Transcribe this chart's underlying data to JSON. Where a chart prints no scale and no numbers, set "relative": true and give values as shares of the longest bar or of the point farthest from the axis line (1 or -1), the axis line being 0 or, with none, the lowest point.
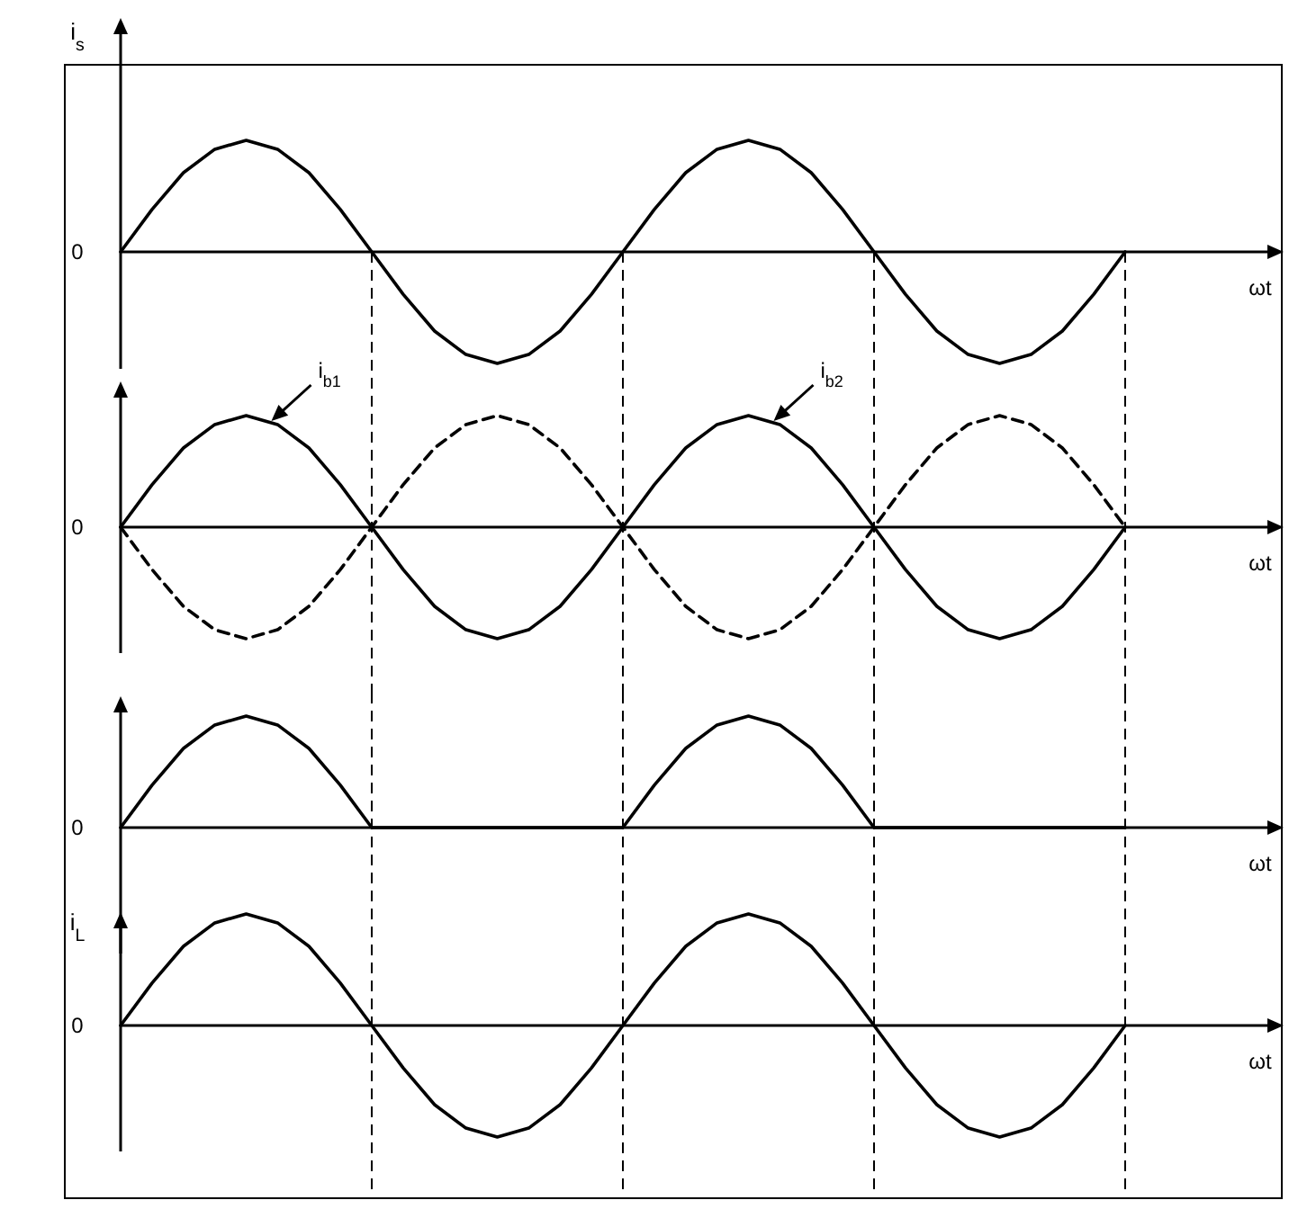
{
  "chart_data": [
    {
      "type": "line",
      "relative": true,
      "grid": "x",
      "ylabel": "i$_{s}$",
      "xlabel": "ωt",
      "annotations": [
        "0"
      ],
      "categories": [
        null,
        null,
        null,
        null,
        null,
        null,
        null,
        null,
        null,
        null,
        null,
        null,
        null,
        null,
        null,
        null,
        null,
        null,
        null,
        null,
        null,
        null,
        null,
        null,
        null,
        null,
        null,
        null,
        null,
        null,
        null,
        null,
        null
      ],
      "series": [
        {
          "color": "#000000",
          "line_style": "solid",
          "values": [
            0,
            0.38,
            0.71,
            0.92,
            1,
            0.92,
            0.71,
            0.38,
            0,
            -0.38,
            -0.71,
            -0.92,
            -1,
            -0.92,
            -0.71,
            -0.38,
            0,
            0.38,
            0.71,
            0.92,
            1,
            0.92,
            0.71,
            0.38,
            0,
            -0.38,
            -0.71,
            -0.92,
            -1,
            -0.92,
            -0.71,
            -0.38,
            0
          ]
        }
      ]
    },
    {
      "type": "line",
      "relative": true,
      "grid": "x",
      "xlabel": "ωt",
      "annotations": [
        "0",
        "i$_{b1}$",
        "i$_{b2}$"
      ],
      "categories": [
        null,
        null,
        null,
        null,
        null,
        null,
        null,
        null,
        null,
        null,
        null,
        null,
        null,
        null,
        null,
        null,
        null,
        null,
        null,
        null,
        null,
        null,
        null,
        null,
        null,
        null,
        null,
        null,
        null,
        null,
        null,
        null,
        null
      ],
      "series": [
        {
          "color": "#000000",
          "line_style": "solid",
          "values": [
            0,
            0.38,
            0.71,
            0.92,
            1,
            0.92,
            0.71,
            0.38,
            0,
            -0.38,
            -0.71,
            -0.92,
            -1,
            -0.92,
            -0.71,
            -0.38,
            0,
            0.38,
            0.71,
            0.92,
            1,
            0.92,
            0.71,
            0.38,
            0,
            -0.38,
            -0.71,
            -0.92,
            -1,
            -0.92,
            -0.71,
            -0.38,
            0
          ]
        },
        {
          "color": "#000000",
          "line_style": "dashed",
          "values": [
            0,
            -0.38,
            -0.71,
            -0.92,
            -1,
            -0.92,
            -0.71,
            -0.38,
            0,
            0.38,
            0.71,
            0.92,
            1,
            0.92,
            0.71,
            0.38,
            0,
            -0.38,
            -0.71,
            -0.92,
            -1,
            -0.92,
            -0.71,
            -0.38,
            0,
            0.38,
            0.71,
            0.92,
            1,
            0.92,
            0.71,
            0.38,
            0
          ]
        }
      ]
    },
    {
      "type": "line",
      "relative": true,
      "grid": "x",
      "xlabel": "ωt",
      "annotations": [
        "0"
      ],
      "categories": [
        null,
        null,
        null,
        null,
        null,
        null,
        null,
        null,
        null,
        null,
        null,
        null,
        null,
        null,
        null,
        null,
        null,
        null,
        null,
        null,
        null,
        null,
        null,
        null,
        null,
        null,
        null,
        null,
        null,
        null,
        null,
        null,
        null
      ],
      "series": [
        {
          "color": "#000000",
          "line_style": "solid",
          "values": [
            0,
            0.38,
            0.71,
            0.92,
            1,
            0.92,
            0.71,
            0.38,
            0,
            0,
            0,
            0,
            0,
            0,
            0,
            0,
            0,
            0.38,
            0.71,
            0.92,
            1,
            0.92,
            0.71,
            0.38,
            0,
            0,
            0,
            0,
            0,
            0,
            0,
            0,
            0
          ]
        }
      ]
    },
    {
      "type": "line",
      "relative": true,
      "grid": "x",
      "ylabel": "i$_{L}$",
      "xlabel": "ωt",
      "annotations": [
        "0"
      ],
      "categories": [
        null,
        null,
        null,
        null,
        null,
        null,
        null,
        null,
        null,
        null,
        null,
        null,
        null,
        null,
        null,
        null,
        null,
        null,
        null,
        null,
        null,
        null,
        null,
        null,
        null,
        null,
        null,
        null,
        null,
        null,
        null,
        null,
        null
      ],
      "series": [
        {
          "color": "#000000",
          "line_style": "solid",
          "values": [
            0,
            0.38,
            0.71,
            0.92,
            1,
            0.92,
            0.71,
            0.38,
            0,
            -0.38,
            -0.71,
            -0.92,
            -1,
            -0.92,
            -0.71,
            -0.38,
            0,
            0.38,
            0.71,
            0.92,
            1,
            0.92,
            0.71,
            0.38,
            0,
            -0.38,
            -0.71,
            -0.92,
            -1,
            -0.92,
            -0.71,
            -0.38,
            0
          ]
        }
      ]
    }
  ]
}
